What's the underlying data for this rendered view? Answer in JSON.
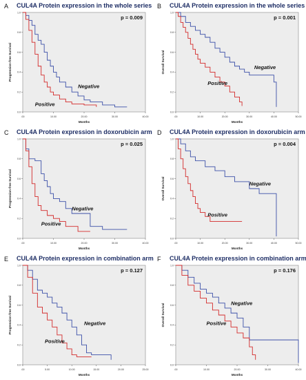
{
  "chart_data": [
    {
      "type": "line",
      "panel_letter": "A",
      "title": "CUL4A Protein expression in the whole series",
      "xlabel": "Months",
      "ylabel": "Progression-free Survival",
      "p_value": "p = 0.009",
      "xlim": [
        0,
        40
      ],
      "ylim": [
        0,
        1
      ],
      "xticks": [
        ".00",
        "10.00",
        "20.00",
        "30.00",
        "40.00"
      ],
      "yticks": [
        "0.0",
        "0.2",
        "0.4",
        "0.6",
        "0.8",
        "1.0"
      ],
      "series": [
        {
          "name": "Negative",
          "color": "#3b4fa8",
          "label_at": [
            18,
            0.24
          ],
          "points": [
            [
              0,
              1
            ],
            [
              1,
              0.97
            ],
            [
              2,
              0.92
            ],
            [
              3,
              0.87
            ],
            [
              4,
              0.78
            ],
            [
              5,
              0.72
            ],
            [
              6,
              0.68
            ],
            [
              7,
              0.6
            ],
            [
              8,
              0.52
            ],
            [
              9,
              0.46
            ],
            [
              10,
              0.4
            ],
            [
              11,
              0.35
            ],
            [
              12,
              0.3
            ],
            [
              14,
              0.25
            ],
            [
              16,
              0.2
            ],
            [
              18,
              0.16
            ],
            [
              20,
              0.12
            ],
            [
              22,
              0.1
            ],
            [
              26,
              0.07
            ],
            [
              30,
              0.05
            ],
            [
              34,
              0.05
            ]
          ]
        },
        {
          "name": "Positive",
          "color": "#d42a2a",
          "label_at": [
            4,
            0.06
          ],
          "points": [
            [
              0,
              1
            ],
            [
              1,
              0.93
            ],
            [
              2,
              0.82
            ],
            [
              3,
              0.7
            ],
            [
              4,
              0.58
            ],
            [
              5,
              0.46
            ],
            [
              6,
              0.37
            ],
            [
              7,
              0.3
            ],
            [
              8,
              0.25
            ],
            [
              9,
              0.2
            ],
            [
              10,
              0.17
            ],
            [
              12,
              0.13
            ],
            [
              14,
              0.1
            ],
            [
              16,
              0.08
            ],
            [
              20,
              0.07
            ],
            [
              24,
              0.05
            ]
          ]
        }
      ]
    },
    {
      "type": "line",
      "panel_letter": "B",
      "title": "CUL4A Protein expression in the whole series",
      "xlabel": "Months",
      "ylabel": "Overall Survival",
      "p_value": "p = 0.001",
      "xlim": [
        0,
        50
      ],
      "ylim": [
        0,
        1
      ],
      "xticks": [
        ".00",
        "10.00",
        "20.00",
        "30.00",
        "40.00",
        "50.00"
      ],
      "yticks": [
        "0.0",
        "0.2",
        "0.4",
        "0.6",
        "0.8",
        "1.0"
      ],
      "series": [
        {
          "name": "Negative",
          "color": "#3b4fa8",
          "label_at": [
            32,
            0.43
          ],
          "points": [
            [
              0,
              1
            ],
            [
              2,
              0.96
            ],
            [
              4,
              0.9
            ],
            [
              6,
              0.86
            ],
            [
              8,
              0.82
            ],
            [
              10,
              0.78
            ],
            [
              12,
              0.75
            ],
            [
              14,
              0.7
            ],
            [
              16,
              0.64
            ],
            [
              18,
              0.6
            ],
            [
              20,
              0.55
            ],
            [
              22,
              0.5
            ],
            [
              24,
              0.46
            ],
            [
              26,
              0.43
            ],
            [
              28,
              0.4
            ],
            [
              30,
              0.37
            ],
            [
              38,
              0.37
            ],
            [
              40,
              0.3
            ],
            [
              41,
              0.05
            ]
          ]
        },
        {
          "name": "Positive",
          "color": "#d42a2a",
          "label_at": [
            13,
            0.27
          ],
          "points": [
            [
              0,
              1
            ],
            [
              1,
              0.96
            ],
            [
              2,
              0.9
            ],
            [
              3,
              0.85
            ],
            [
              4,
              0.8
            ],
            [
              5,
              0.74
            ],
            [
              6,
              0.68
            ],
            [
              7,
              0.63
            ],
            [
              8,
              0.58
            ],
            [
              9,
              0.53
            ],
            [
              10,
              0.49
            ],
            [
              12,
              0.45
            ],
            [
              14,
              0.4
            ],
            [
              16,
              0.35
            ],
            [
              18,
              0.3
            ],
            [
              20,
              0.26
            ],
            [
              22,
              0.2
            ],
            [
              24,
              0.15
            ],
            [
              26,
              0.1
            ],
            [
              27,
              0.06
            ]
          ]
        }
      ]
    },
    {
      "type": "line",
      "panel_letter": "C",
      "title": "CUL4A Protein expression in doxorubicin arm",
      "xlabel": "Months",
      "ylabel": "Progression-free Survival",
      "p_value": "p = 0.025",
      "xlim": [
        0,
        40
      ],
      "ylim": [
        0,
        1
      ],
      "xticks": [
        ".00",
        "10.00",
        "20.00",
        "30.00",
        "40.00"
      ],
      "yticks": [
        "0.0",
        "0.2",
        "0.4",
        "0.6",
        "0.8",
        "1.0"
      ],
      "series": [
        {
          "name": "Negative",
          "color": "#3b4fa8",
          "label_at": [
            16,
            0.28
          ],
          "points": [
            [
              0,
              1
            ],
            [
              1,
              0.9
            ],
            [
              2,
              0.8
            ],
            [
              4,
              0.78
            ],
            [
              6,
              0.65
            ],
            [
              7,
              0.58
            ],
            [
              8,
              0.52
            ],
            [
              9,
              0.45
            ],
            [
              10,
              0.4
            ],
            [
              12,
              0.37
            ],
            [
              14,
              0.3
            ],
            [
              16,
              0.25
            ],
            [
              20,
              0.25
            ],
            [
              22,
              0.12
            ],
            [
              26,
              0.09
            ],
            [
              34,
              0.09
            ]
          ]
        },
        {
          "name": "Positive",
          "color": "#d42a2a",
          "label_at": [
            6,
            0.13
          ],
          "points": [
            [
              0,
              1
            ],
            [
              1,
              0.88
            ],
            [
              2,
              0.72
            ],
            [
              3,
              0.55
            ],
            [
              4,
              0.42
            ],
            [
              5,
              0.33
            ],
            [
              6,
              0.28
            ],
            [
              8,
              0.23
            ],
            [
              10,
              0.2
            ],
            [
              12,
              0.17
            ],
            [
              14,
              0.12
            ],
            [
              18,
              0.07
            ],
            [
              22,
              0.07
            ]
          ]
        }
      ]
    },
    {
      "type": "line",
      "panel_letter": "D",
      "title": "CUL4A Protein expression in doxorubicin arm",
      "xlabel": "Months",
      "ylabel": "Overall Survival",
      "p_value": "p = 0.004",
      "xlim": [
        0,
        50
      ],
      "ylim": [
        0,
        1
      ],
      "xticks": [
        ".00",
        "10.00",
        "20.00",
        "30.00",
        "40.00",
        "50.00"
      ],
      "yticks": [
        "0.0",
        "0.2",
        "0.4",
        "0.6",
        "0.8",
        "1.0"
      ],
      "series": [
        {
          "name": "Negative",
          "color": "#3b4fa8",
          "label_at": [
            30,
            0.53
          ],
          "points": [
            [
              0,
              1
            ],
            [
              2,
              0.95
            ],
            [
              4,
              0.88
            ],
            [
              6,
              0.82
            ],
            [
              8,
              0.78
            ],
            [
              12,
              0.72
            ],
            [
              16,
              0.68
            ],
            [
              20,
              0.62
            ],
            [
              24,
              0.57
            ],
            [
              30,
              0.5
            ],
            [
              34,
              0.45
            ],
            [
              40,
              0.45
            ],
            [
              41,
              0.02
            ]
          ]
        },
        {
          "name": "Positive",
          "color": "#d42a2a",
          "label_at": [
            13,
            0.22
          ],
          "points": [
            [
              0,
              1
            ],
            [
              1,
              0.9
            ],
            [
              2,
              0.8
            ],
            [
              3,
              0.7
            ],
            [
              4,
              0.62
            ],
            [
              5,
              0.55
            ],
            [
              6,
              0.48
            ],
            [
              7,
              0.42
            ],
            [
              8,
              0.35
            ],
            [
              9,
              0.3
            ],
            [
              10,
              0.26
            ],
            [
              12,
              0.22
            ],
            [
              14,
              0.17
            ],
            [
              20,
              0.17
            ],
            [
              27,
              0.17
            ]
          ]
        }
      ]
    },
    {
      "type": "line",
      "panel_letter": "E",
      "title": "CUL4A Protein expression in combination arm",
      "xlabel": "Months",
      "ylabel": "Progression-free Survival",
      "p_value": "p = 0.127",
      "xlim": [
        0,
        25
      ],
      "ylim": [
        0,
        1
      ],
      "xticks": [
        ".00",
        "5.00",
        "10.00",
        "15.00",
        "20.00",
        "25.00"
      ],
      "yticks": [
        "0.0",
        "0.2",
        "0.4",
        "0.6",
        "0.8",
        "1.0"
      ],
      "series": [
        {
          "name": "Negative",
          "color": "#3b4fa8",
          "label_at": [
            12.5,
            0.4
          ],
          "points": [
            [
              0,
              1
            ],
            [
              1,
              0.95
            ],
            [
              2,
              0.86
            ],
            [
              3,
              0.75
            ],
            [
              4,
              0.72
            ],
            [
              5,
              0.68
            ],
            [
              6,
              0.62
            ],
            [
              7,
              0.58
            ],
            [
              8,
              0.52
            ],
            [
              9,
              0.45
            ],
            [
              10,
              0.38
            ],
            [
              11,
              0.3
            ],
            [
              12,
              0.2
            ],
            [
              13,
              0.12
            ],
            [
              14,
              0.1
            ],
            [
              17,
              0.1
            ],
            [
              18,
              0.05
            ]
          ]
        },
        {
          "name": "Positive",
          "color": "#d42a2a",
          "label_at": [
            4.5,
            0.22
          ],
          "points": [
            [
              0,
              1
            ],
            [
              1,
              0.88
            ],
            [
              2,
              0.72
            ],
            [
              3,
              0.58
            ],
            [
              4,
              0.52
            ],
            [
              5,
              0.45
            ],
            [
              6,
              0.38
            ],
            [
              7,
              0.3
            ],
            [
              8,
              0.22
            ],
            [
              9,
              0.16
            ],
            [
              10,
              0.1
            ],
            [
              11,
              0.08
            ],
            [
              14,
              0.08
            ]
          ]
        }
      ]
    },
    {
      "type": "line",
      "panel_letter": "F",
      "title": "CUL4A Protein expression in combination arm",
      "xlabel": "Months",
      "ylabel": "Overall Survival",
      "p_value": "p = 0.176",
      "xlim": [
        0,
        40
      ],
      "ylim": [
        0,
        1
      ],
      "xticks": [
        ".00",
        "10.00",
        "20.00",
        "30.00",
        "40.00"
      ],
      "yticks": [
        "0.0",
        "0.2",
        "0.4",
        "0.6",
        "0.8",
        "1.0"
      ],
      "series": [
        {
          "name": "Negative",
          "color": "#3b4fa8",
          "label_at": [
            18,
            0.6
          ],
          "points": [
            [
              0,
              1
            ],
            [
              2,
              0.95
            ],
            [
              4,
              0.88
            ],
            [
              6,
              0.82
            ],
            [
              8,
              0.76
            ],
            [
              10,
              0.72
            ],
            [
              12,
              0.68
            ],
            [
              14,
              0.62
            ],
            [
              16,
              0.57
            ],
            [
              18,
              0.52
            ],
            [
              20,
              0.47
            ],
            [
              22,
              0.38
            ],
            [
              24,
              0.25
            ],
            [
              30,
              0.25
            ],
            [
              39,
              0.25
            ],
            [
              40,
              0.02
            ]
          ]
        },
        {
          "name": "Positive",
          "color": "#d42a2a",
          "label_at": [
            10,
            0.4
          ],
          "points": [
            [
              0,
              1
            ],
            [
              2,
              0.9
            ],
            [
              4,
              0.8
            ],
            [
              6,
              0.74
            ],
            [
              8,
              0.67
            ],
            [
              10,
              0.62
            ],
            [
              12,
              0.55
            ],
            [
              14,
              0.5
            ],
            [
              16,
              0.44
            ],
            [
              18,
              0.38
            ],
            [
              20,
              0.32
            ],
            [
              22,
              0.27
            ],
            [
              24,
              0.18
            ],
            [
              25,
              0.1
            ],
            [
              26,
              0.05
            ]
          ]
        }
      ]
    }
  ]
}
